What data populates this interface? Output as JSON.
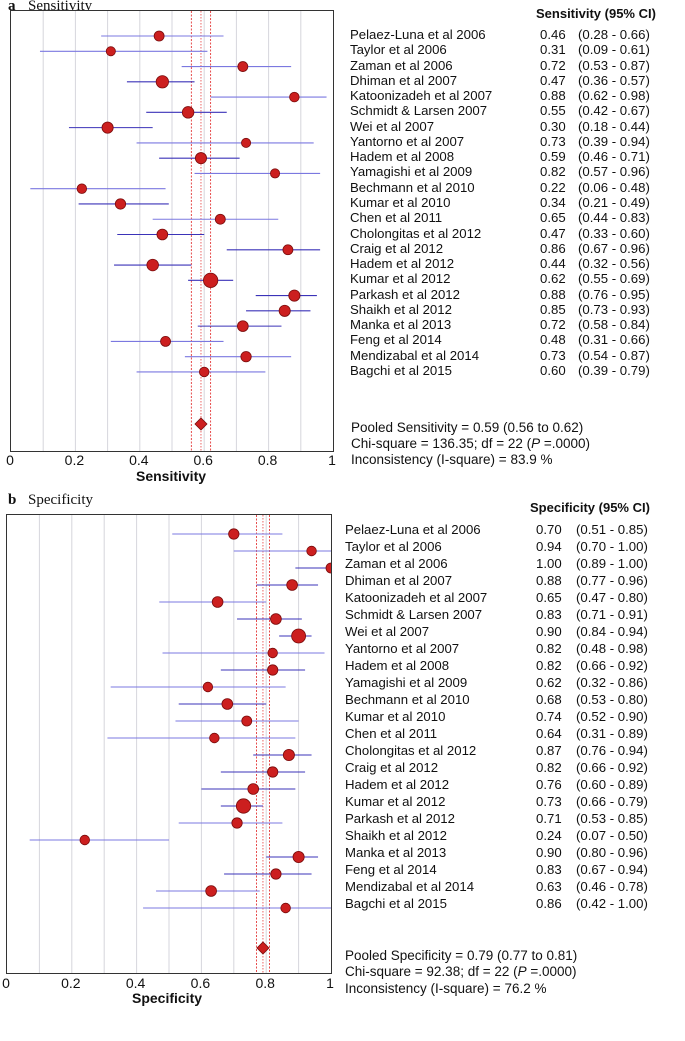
{
  "chart_data": [
    {
      "type": "forest",
      "panel_label": "a",
      "title": "Sensitivity",
      "column_header": "Sensitivity (95% CI)",
      "xlabel": "Sensitivity",
      "xlim": [
        0,
        1
      ],
      "xticks": [
        "0",
        "0.2",
        "0.4",
        "0.6",
        "0.8",
        "1"
      ],
      "studies": [
        {
          "name": "Pelaez-Luna et al 2006",
          "est": "0.46",
          "ci": "(0.28 - 0.66)",
          "value": 0.46,
          "low": 0.28,
          "high": 0.66,
          "weight": 0.45
        },
        {
          "name": "Taylor et al 2006",
          "est": "0.31",
          "ci": "(0.09 - 0.61)",
          "value": 0.31,
          "low": 0.09,
          "high": 0.61,
          "weight": 0.35
        },
        {
          "name": "Zaman et al 2006",
          "est": "0.72",
          "ci": "(0.53 - 0.87)",
          "value": 0.72,
          "low": 0.53,
          "high": 0.87,
          "weight": 0.45
        },
        {
          "name": "Dhiman et al 2007",
          "est": "0.47",
          "ci": "(0.36 - 0.57)",
          "value": 0.47,
          "low": 0.36,
          "high": 0.57,
          "weight": 0.75
        },
        {
          "name": "Katoonizadeh et al 2007",
          "est": "0.88",
          "ci": "(0.62 - 0.98)",
          "value": 0.88,
          "low": 0.62,
          "high": 0.98,
          "weight": 0.4
        },
        {
          "name": "Schmidt & Larsen 2007",
          "est": "0.55",
          "ci": "(0.42 - 0.67)",
          "value": 0.55,
          "low": 0.42,
          "high": 0.67,
          "weight": 0.65
        },
        {
          "name": "Wei et al 2007",
          "est": "0.30",
          "ci": "(0.18 - 0.44)",
          "value": 0.3,
          "low": 0.18,
          "high": 0.44,
          "weight": 0.6
        },
        {
          "name": "Yantorno et al 2007",
          "est": "0.73",
          "ci": "(0.39 - 0.94)",
          "value": 0.73,
          "low": 0.39,
          "high": 0.94,
          "weight": 0.35
        },
        {
          "name": "Hadem et al 2008",
          "est": "0.59",
          "ci": "(0.46 - 0.71)",
          "value": 0.59,
          "low": 0.46,
          "high": 0.71,
          "weight": 0.6
        },
        {
          "name": "Yamagishi et al 2009",
          "est": "0.82",
          "ci": "(0.57 - 0.96)",
          "value": 0.82,
          "low": 0.57,
          "high": 0.96,
          "weight": 0.35
        },
        {
          "name": "Bechmann et al 2010",
          "est": "0.22",
          "ci": "(0.06 - 0.48)",
          "value": 0.22,
          "low": 0.06,
          "high": 0.48,
          "weight": 0.4
        },
        {
          "name": "Kumar et al 2010",
          "est": "0.34",
          "ci": "(0.21 - 0.49)",
          "value": 0.34,
          "low": 0.21,
          "high": 0.49,
          "weight": 0.5
        },
        {
          "name": "Chen et al 2011",
          "est": "0.65",
          "ci": "(0.44 - 0.83)",
          "value": 0.65,
          "low": 0.44,
          "high": 0.83,
          "weight": 0.45
        },
        {
          "name": "Cholongitas et al 2012",
          "est": "0.47",
          "ci": "(0.33 - 0.60)",
          "value": 0.47,
          "low": 0.33,
          "high": 0.6,
          "weight": 0.55
        },
        {
          "name": "Craig et al 2012",
          "est": "0.86",
          "ci": "(0.67 - 0.96)",
          "value": 0.86,
          "low": 0.67,
          "high": 0.96,
          "weight": 0.45
        },
        {
          "name": "Hadem et al 2012",
          "est": "0.44",
          "ci": "(0.32 - 0.56)",
          "value": 0.44,
          "low": 0.32,
          "high": 0.56,
          "weight": 0.65
        },
        {
          "name": "Kumar et al 2012",
          "est": "0.62",
          "ci": "(0.55 - 0.69)",
          "value": 0.62,
          "low": 0.55,
          "high": 0.69,
          "weight": 1.0
        },
        {
          "name": "Parkash et al 2012",
          "est": "0.88",
          "ci": "(0.76 - 0.95)",
          "value": 0.88,
          "low": 0.76,
          "high": 0.95,
          "weight": 0.6
        },
        {
          "name": "Shaikh et al 2012",
          "est": "0.85",
          "ci": "(0.73 - 0.93)",
          "value": 0.85,
          "low": 0.73,
          "high": 0.93,
          "weight": 0.6
        },
        {
          "name": "Manka et al 2013",
          "est": "0.72",
          "ci": "(0.58 - 0.84)",
          "value": 0.72,
          "low": 0.58,
          "high": 0.84,
          "weight": 0.55
        },
        {
          "name": "Feng et al 2014",
          "est": "0.48",
          "ci": "(0.31 - 0.66)",
          "value": 0.48,
          "low": 0.31,
          "high": 0.66,
          "weight": 0.45
        },
        {
          "name": "Mendizabal et al 2014",
          "est": "0.73",
          "ci": "(0.54 - 0.87)",
          "value": 0.73,
          "low": 0.54,
          "high": 0.87,
          "weight": 0.5
        },
        {
          "name": "Bagchi et al 2015",
          "est": "0.60",
          "ci": "(0.39 - 0.79)",
          "value": 0.6,
          "low": 0.39,
          "high": 0.79,
          "weight": 0.4
        }
      ],
      "pooled": {
        "value": 0.59,
        "low": 0.56,
        "high": 0.62
      },
      "stats": {
        "pooled_line": "Pooled Sensitivity = 0.59 (0.56 to 0.62)",
        "chi_prefix": "Chi-square = 136.35; df =  22 (",
        "chi_p_italic": "P",
        "chi_suffix": " =.0000)",
        "inconsistency_line": "Inconsistency (I-square) = 83.9 %"
      }
    },
    {
      "type": "forest",
      "panel_label": "b",
      "title": "Specificity",
      "column_header": "Specificity (95% CI)",
      "xlabel": "Specificity",
      "xlim": [
        0,
        1
      ],
      "xticks": [
        "0",
        "0.2",
        "0.4",
        "0.6",
        "0.8",
        "1"
      ],
      "studies": [
        {
          "name": "Pelaez-Luna et al 2006",
          "est": "0.70",
          "ci": "(0.51 - 0.85)",
          "value": 0.7,
          "low": 0.51,
          "high": 0.85,
          "weight": 0.5
        },
        {
          "name": "Taylor et al 2006",
          "est": "0.94",
          "ci": "(0.70 - 1.00)",
          "value": 0.94,
          "low": 0.7,
          "high": 1.0,
          "weight": 0.4
        },
        {
          "name": "Zaman et al 2006",
          "est": "1.00",
          "ci": "(0.89 - 1.00)",
          "value": 1.0,
          "low": 0.89,
          "high": 1.0,
          "weight": 0.45
        },
        {
          "name": "Dhiman et al 2007",
          "est": "0.88",
          "ci": "(0.77 - 0.96)",
          "value": 0.88,
          "low": 0.77,
          "high": 0.96,
          "weight": 0.55
        },
        {
          "name": "Katoonizadeh et al 2007",
          "est": "0.65",
          "ci": "(0.47 - 0.80)",
          "value": 0.65,
          "low": 0.47,
          "high": 0.8,
          "weight": 0.55
        },
        {
          "name": "Schmidt & Larsen 2007",
          "est": "0.83",
          "ci": "(0.71 - 0.91)",
          "value": 0.83,
          "low": 0.71,
          "high": 0.91,
          "weight": 0.55
        },
        {
          "name": "Wei et al 2007",
          "est": "0.90",
          "ci": "(0.84 - 0.94)",
          "value": 0.9,
          "low": 0.84,
          "high": 0.94,
          "weight": 0.95
        },
        {
          "name": "Yantorno et al 2007",
          "est": "0.82",
          "ci": "(0.48 - 0.98)",
          "value": 0.82,
          "low": 0.48,
          "high": 0.98,
          "weight": 0.4
        },
        {
          "name": "Hadem et al 2008",
          "est": "0.82",
          "ci": "(0.66 - 0.92)",
          "value": 0.82,
          "low": 0.66,
          "high": 0.92,
          "weight": 0.5
        },
        {
          "name": "Yamagishi et al 2009",
          "est": "0.62",
          "ci": "(0.32 - 0.86)",
          "value": 0.62,
          "low": 0.32,
          "high": 0.86,
          "weight": 0.4
        },
        {
          "name": "Bechmann et al 2010",
          "est": "0.68",
          "ci": "(0.53 - 0.80)",
          "value": 0.68,
          "low": 0.53,
          "high": 0.8,
          "weight": 0.55
        },
        {
          "name": "Kumar et al 2010",
          "est": "0.74",
          "ci": "(0.52 - 0.90)",
          "value": 0.74,
          "low": 0.52,
          "high": 0.9,
          "weight": 0.45
        },
        {
          "name": "Chen et al 2011",
          "est": "0.64",
          "ci": "(0.31 - 0.89)",
          "value": 0.64,
          "low": 0.31,
          "high": 0.89,
          "weight": 0.4
        },
        {
          "name": "Cholongitas et al 2012",
          "est": "0.87",
          "ci": "(0.76 - 0.94)",
          "value": 0.87,
          "low": 0.76,
          "high": 0.94,
          "weight": 0.6
        },
        {
          "name": "Craig et al 2012",
          "est": "0.82",
          "ci": "(0.66 - 0.92)",
          "value": 0.82,
          "low": 0.66,
          "high": 0.92,
          "weight": 0.5
        },
        {
          "name": "Hadem et al 2012",
          "est": "0.76",
          "ci": "(0.60 - 0.89)",
          "value": 0.76,
          "low": 0.6,
          "high": 0.89,
          "weight": 0.55
        },
        {
          "name": "Kumar et al 2012",
          "est": "0.73",
          "ci": "(0.66 - 0.79)",
          "value": 0.73,
          "low": 0.66,
          "high": 0.79,
          "weight": 1.0
        },
        {
          "name": "Parkash et al 2012",
          "est": "0.71",
          "ci": "(0.53 - 0.85)",
          "value": 0.71,
          "low": 0.53,
          "high": 0.85,
          "weight": 0.5
        },
        {
          "name": "Shaikh et al 2012",
          "est": "0.24",
          "ci": "(0.07 - 0.50)",
          "value": 0.24,
          "low": 0.07,
          "high": 0.5,
          "weight": 0.4
        },
        {
          "name": "Manka et al 2013",
          "est": "0.90",
          "ci": "(0.80 - 0.96)",
          "value": 0.9,
          "low": 0.8,
          "high": 0.96,
          "weight": 0.6
        },
        {
          "name": "Feng et al 2014",
          "est": "0.83",
          "ci": "(0.67 - 0.94)",
          "value": 0.83,
          "low": 0.67,
          "high": 0.94,
          "weight": 0.5
        },
        {
          "name": "Mendizabal et al 2014",
          "est": "0.63",
          "ci": "(0.46 - 0.78)",
          "value": 0.63,
          "low": 0.46,
          "high": 0.78,
          "weight": 0.55
        },
        {
          "name": "Bagchi et al 2015",
          "est": "0.86",
          "ci": "(0.42 - 1.00)",
          "value": 0.86,
          "low": 0.42,
          "high": 1.0,
          "weight": 0.4
        }
      ],
      "pooled": {
        "value": 0.79,
        "low": 0.77,
        "high": 0.81
      },
      "stats": {
        "pooled_line": "Pooled Specificity = 0.79 (0.77 to 0.81)",
        "chi_prefix": "Chi-square = 92.38; df =  22 (",
        "chi_p_italic": "P",
        "chi_suffix": " =.0000)",
        "inconsistency_line": "Inconsistency (I-square) = 76.2 %"
      }
    }
  ],
  "colors": {
    "marker": "#cc1f1f",
    "marker_stroke": "#7a0c0c",
    "ci_line": "#7b78e0",
    "ci_line_dark": "#3b33b8",
    "pooled_line": "#e02020",
    "grid": "#d6d6dc",
    "frame": "#333333"
  }
}
